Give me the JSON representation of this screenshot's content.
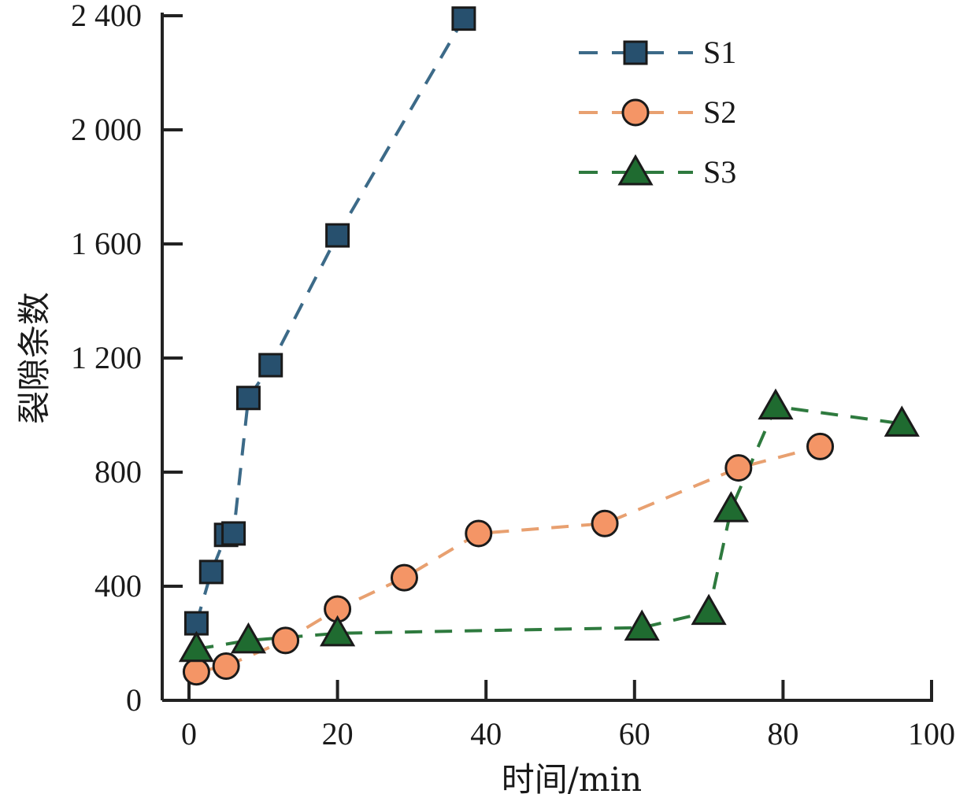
{
  "chart_data": {
    "type": "line",
    "title": "",
    "xlabel": "时间/min",
    "ylabel": "裂隙条数",
    "xlim": [
      0,
      100
    ],
    "ylim": [
      0,
      2400
    ],
    "xticks": [
      0,
      20,
      40,
      60,
      80,
      100
    ],
    "xtick_labels": [
      "0",
      "20",
      "40",
      "60",
      "80",
      "100"
    ],
    "yticks": [
      0,
      400,
      800,
      1200,
      1600,
      2000,
      2400
    ],
    "ytick_labels": [
      "0",
      "400",
      "800",
      "1 200",
      "1 600",
      "2 000",
      "2 400"
    ],
    "grid": false,
    "legend_position": "top-right",
    "series": [
      {
        "name": "S1",
        "marker": "square",
        "line_color": "#3c6a88",
        "marker_color": "#27506e",
        "x": [
          1,
          3,
          5,
          6,
          8,
          11,
          20,
          37
        ],
        "y": [
          270,
          450,
          580,
          585,
          1060,
          1175,
          1630,
          2390
        ]
      },
      {
        "name": "S2",
        "marker": "circle",
        "line_color": "#e8a070",
        "marker_color": "#f49566",
        "x": [
          1,
          5,
          13,
          20,
          29,
          39,
          56,
          74,
          85
        ],
        "y": [
          100,
          120,
          210,
          320,
          430,
          585,
          620,
          815,
          890
        ]
      },
      {
        "name": "S3",
        "marker": "triangle",
        "line_color": "#2e7a3e",
        "marker_color": "#1f6b30",
        "x": [
          1,
          8,
          20,
          61,
          70,
          73,
          79,
          96
        ],
        "y": [
          180,
          210,
          235,
          255,
          310,
          670,
          1030,
          970
        ]
      }
    ]
  }
}
